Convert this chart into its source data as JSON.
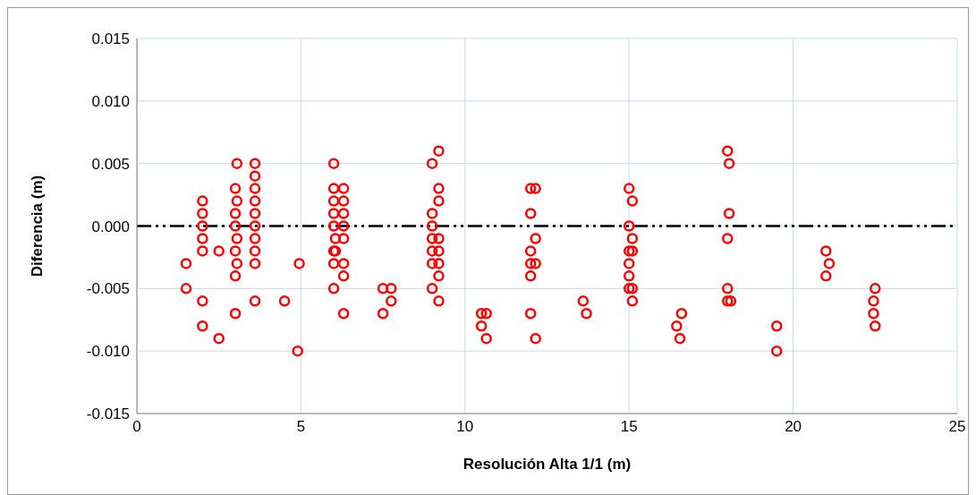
{
  "chart_data": {
    "type": "scatter",
    "xlabel": "Resolución  Alta 1/1 (m)",
    "ylabel": "Diferencia  (m)",
    "xlim": [
      0,
      25
    ],
    "xticks": [
      0,
      5,
      10,
      15,
      20,
      25
    ],
    "ylim": [
      -0.015,
      0.015
    ],
    "yticks": [
      {
        "value": -0.015,
        "label": "-0.015"
      },
      {
        "value": -0.01,
        "label": "-0.010"
      },
      {
        "value": -0.005,
        "label": "-0.005"
      },
      {
        "value": 0,
        "label": "0.000"
      },
      {
        "value": 0.005,
        "label": "0.005"
      },
      {
        "value": 0.01,
        "label": "0.010"
      },
      {
        "value": 0.015,
        "label": "0.015"
      }
    ],
    "grid": true,
    "legend": false,
    "marker": "circle",
    "ref_lines": [
      {
        "axis": "y",
        "value": 0,
        "color": "#000000",
        "line_style": "dashdotdot"
      }
    ],
    "series": [
      {
        "color": "#ff0000",
        "x": [
          1.5,
          1.5,
          2,
          2,
          2,
          2,
          2,
          2,
          2,
          2.5,
          2.5,
          3,
          3,
          3,
          3,
          3,
          3,
          3.05,
          3.05,
          3.05,
          3.05,
          3.6,
          3.6,
          3.6,
          3.6,
          3.6,
          3.6,
          3.6,
          3.6,
          3.6,
          3.6,
          4.5,
          4.9,
          4.95,
          6,
          6,
          6,
          6,
          6,
          6,
          6,
          6,
          6.05,
          6.05,
          6.3,
          6.3,
          6.3,
          6.3,
          6.3,
          6.3,
          6.3,
          6.3,
          7.5,
          7.5,
          7.75,
          7.75,
          9,
          9,
          9,
          9,
          9,
          9,
          9,
          9.2,
          9.2,
          9.2,
          9.2,
          9.2,
          9.2,
          9.2,
          9.2,
          10.5,
          10.5,
          10.65,
          10.65,
          12,
          12,
          12,
          12,
          12,
          12,
          12.15,
          12.15,
          12.15,
          12.15,
          13.6,
          13.7,
          15,
          15,
          15,
          15,
          15,
          15,
          15.1,
          15.1,
          15.1,
          15.1,
          15.1,
          16.6,
          16.45,
          16.55,
          18,
          18,
          18,
          18,
          18.05,
          18.05,
          18.1,
          19.5,
          19.5,
          21,
          21,
          21.1,
          22.5,
          22.45,
          22.45,
          22.5
        ],
        "values": [
          -0.003,
          -0.005,
          0.002,
          0.001,
          0,
          -0.001,
          -0.002,
          -0.006,
          -0.008,
          -0.002,
          -0.009,
          0.003,
          0.001,
          0,
          -0.002,
          -0.004,
          -0.007,
          0.005,
          0.002,
          -0.001,
          -0.003,
          0.005,
          0.004,
          0.003,
          0.002,
          0.001,
          0,
          -0.001,
          -0.002,
          -0.003,
          -0.006,
          -0.006,
          -0.01,
          -0.003,
          0.005,
          0.003,
          0.002,
          0.001,
          0,
          -0.002,
          -0.003,
          -0.005,
          -0.001,
          -0.002,
          0.003,
          0.002,
          0.001,
          0,
          -0.001,
          -0.003,
          -0.004,
          -0.007,
          -0.005,
          -0.007,
          -0.005,
          -0.006,
          0.005,
          0.001,
          0,
          -0.001,
          -0.002,
          -0.003,
          -0.005,
          0.006,
          0.003,
          0.002,
          -0.001,
          -0.002,
          -0.003,
          -0.004,
          -0.006,
          -0.007,
          -0.008,
          -0.007,
          -0.009,
          0.003,
          0.001,
          -0.002,
          -0.003,
          -0.004,
          -0.007,
          0.003,
          -0.001,
          -0.003,
          -0.009,
          -0.006,
          -0.007,
          0.003,
          0,
          -0.002,
          -0.003,
          -0.004,
          -0.005,
          0.002,
          -0.001,
          -0.002,
          -0.005,
          -0.006,
          -0.007,
          -0.008,
          -0.009,
          0.006,
          -0.001,
          -0.005,
          -0.006,
          0.005,
          0.001,
          -0.006,
          -0.008,
          -0.01,
          -0.002,
          -0.004,
          -0.003,
          -0.005,
          -0.006,
          -0.007,
          -0.008
        ]
      }
    ]
  }
}
